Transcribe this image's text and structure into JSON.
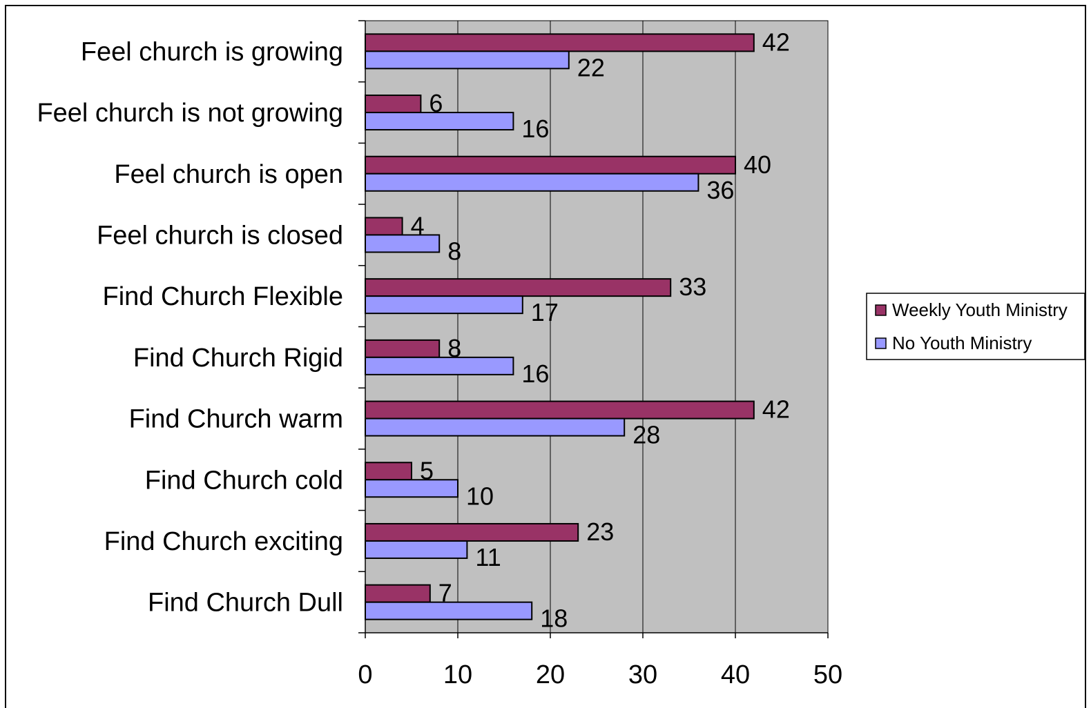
{
  "chart_data": {
    "type": "bar",
    "orientation": "horizontal",
    "categories": [
      "Feel church is growing",
      "Feel church is not growing",
      "Feel church is open",
      "Feel church is closed",
      "Find Church Flexible",
      "Find Church Rigid",
      "Find Church warm",
      "Find Church cold",
      "Find Church exciting",
      "Find Church Dull"
    ],
    "series": [
      {
        "name": "Weekly Youth Ministry",
        "color": "#993366",
        "values": [
          42,
          6,
          40,
          4,
          33,
          8,
          42,
          5,
          23,
          7
        ]
      },
      {
        "name": "No Youth Ministry",
        "color": "#9999FF",
        "values": [
          22,
          16,
          36,
          8,
          17,
          16,
          28,
          10,
          11,
          18
        ]
      }
    ],
    "xlim": [
      0,
      50
    ],
    "xticks": [
      0,
      10,
      20,
      30,
      40,
      50
    ],
    "grid": "vertical",
    "plot_background": "#C0C0C0",
    "legend_position": "right",
    "data_labels": true
  }
}
